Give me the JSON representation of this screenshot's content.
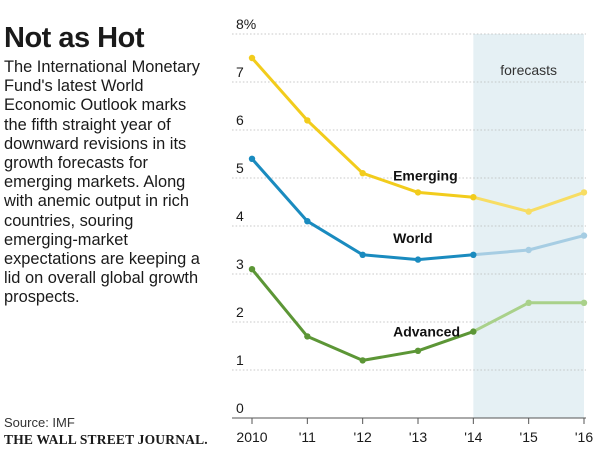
{
  "headline": "Not as Hot",
  "description": "The International Monetary Fund's latest World Economic Outlook marks the fifth straight year of downward revisions in its growth forecasts for emerging markets. Along with anemic output in rich countries, souring emerging-market expectations are keeping a lid on overall global growth prospects.",
  "source": "Source: IMF",
  "publisher": "THE WALL STREET JOURNAL.",
  "chart_data": {
    "type": "line",
    "title": "",
    "xlabel": "",
    "ylabel": "",
    "x": [
      2010,
      2011,
      2012,
      2013,
      2014,
      2015,
      2016
    ],
    "x_tick_labels": [
      "2010",
      "'11",
      "'12",
      "'13",
      "'14",
      "'15",
      "'16"
    ],
    "y_ticks": [
      0,
      1,
      2,
      3,
      4,
      5,
      6,
      7,
      8
    ],
    "y_tick_labels": [
      "0",
      "1",
      "2",
      "3",
      "4",
      "5",
      "6",
      "7",
      "8%"
    ],
    "ylim": [
      0,
      8
    ],
    "grid": "horizontal",
    "forecast_start": 2014,
    "forecast_label": "forecasts",
    "series": [
      {
        "name": "Emerging",
        "values": [
          7.5,
          6.2,
          5.1,
          4.7,
          4.6,
          4.3,
          4.7
        ],
        "color": "#f2cc1c",
        "forecast_color": "#f7dd63"
      },
      {
        "name": "World",
        "values": [
          5.4,
          4.1,
          3.4,
          3.3,
          3.4,
          3.5,
          3.8
        ],
        "color": "#1a8bbf",
        "forecast_color": "#a6cde3"
      },
      {
        "name": "Advanced",
        "values": [
          3.1,
          1.7,
          1.2,
          1.4,
          1.8,
          2.4,
          2.4
        ],
        "color": "#5c9636",
        "forecast_color": "#a9d18a"
      }
    ]
  }
}
